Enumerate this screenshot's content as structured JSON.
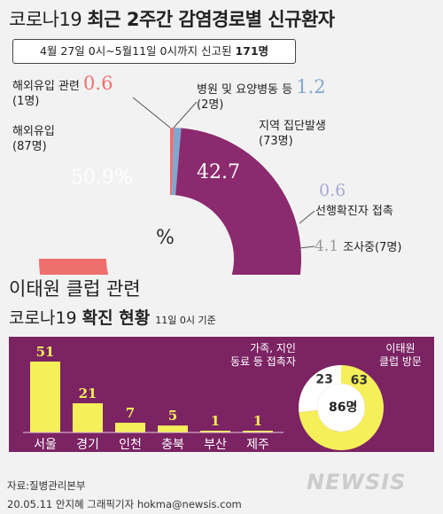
{
  "title": {
    "prefix": "코로나19",
    "main": "최근 2주간 감염경로별 신규환자"
  },
  "banner": {
    "text": "4월 27일 0시~5월11일 0시까지 신고된",
    "count": "171명"
  },
  "donut_labels": [
    {
      "id": "abroad-related",
      "name": "해외유입 관련",
      "pct": "0.6",
      "count": "(1명)"
    },
    {
      "id": "hospital",
      "name": "병원 및 요양병동 등",
      "pct": "1.2",
      "count": "(2명)"
    },
    {
      "id": "abroad",
      "name": "해외유입",
      "pct": "50.9%",
      "count": "(87명)"
    },
    {
      "id": "local",
      "name": "지역 집단발생",
      "pct": "42.7",
      "count": "(73명)"
    },
    {
      "id": "contact",
      "name": "선행확진자 접촉",
      "pct": "0.6",
      "count": ""
    },
    {
      "id": "investigating",
      "name": "조사중",
      "pct": "4.1",
      "count": "(7명)"
    }
  ],
  "percent_sign": "%",
  "section2": {
    "title": "이태원 클럽 관련",
    "subtitle_prefix": "코로나19",
    "subtitle_main": "확진 현황",
    "note": "11일 0시 기준"
  },
  "small_donut": {
    "center": "86명",
    "left_label_1": "가족, 지인",
    "left_label_2": "동료 등 접촉자",
    "right_label_1": "이태원",
    "right_label_2": "클럽 방문"
  },
  "source": "자료:질병관리본부",
  "credit": "20.05.11  안지혜 그래픽기자  hokma@newsis.com",
  "watermark": "NEWSIS",
  "colors": {
    "abroad": "#ef6f6f",
    "abroad_related": "#ef6f6f",
    "hospital": "#7fa7cf",
    "local": "#8b2a6e",
    "contact": "#a7a9d6",
    "investigating": "#999999",
    "panel": "#7b2363",
    "bar": "#f5ef5a",
    "ring_white": "#ffffff"
  },
  "chart_data": [
    {
      "type": "pie",
      "title": "코로나19 최근 2주간 감염경로별 신규환자",
      "labels": [
        "해외유입 관련",
        "병원 및 요양병동 등",
        "지역 집단발생",
        "선행확진자 접촉",
        "조사중",
        "해외유입"
      ],
      "values": [
        0.6,
        1.2,
        42.7,
        0.6,
        4.1,
        50.9
      ],
      "counts": [
        1,
        2,
        73,
        null,
        7,
        87
      ],
      "unit": "%",
      "shape": "half-donut"
    },
    {
      "type": "bar",
      "title": "이태원 클럽 관련 코로나19 확진 현황",
      "categories": [
        "서울",
        "경기",
        "인천",
        "충북",
        "부산",
        "제주"
      ],
      "values": [
        51,
        21,
        7,
        5,
        1,
        1
      ]
    },
    {
      "type": "pie",
      "labels": [
        "이태원 클럽 방문",
        "가족, 지인 동료 등 접촉자"
      ],
      "values": [
        63,
        23
      ],
      "total": "86명",
      "shape": "donut"
    }
  ]
}
